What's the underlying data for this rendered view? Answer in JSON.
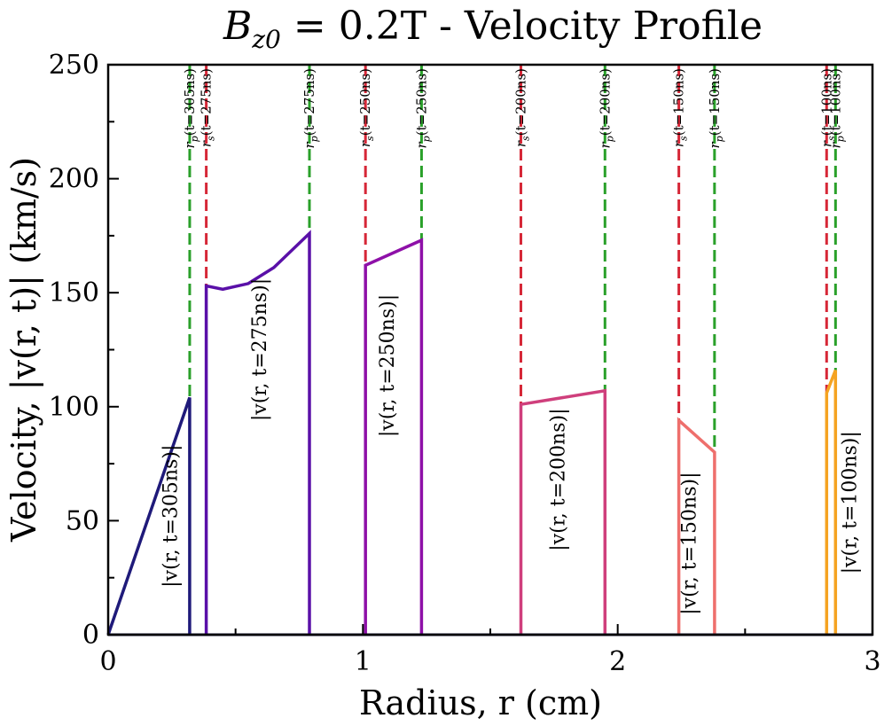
{
  "chart_data": {
    "type": "line",
    "title": "B_z0 = 0.2T - Velocity Profile",
    "title_parts": {
      "symbol": "B",
      "subscript": "z0",
      "rest": " = 0.2T - Velocity Profile"
    },
    "xlabel": "Radius, r (cm)",
    "ylabel": "Velocity, |v(r, t)| (km/s)",
    "xlim": [
      0,
      3
    ],
    "ylim": [
      0,
      250
    ],
    "xticks": [
      0,
      1,
      2,
      3
    ],
    "yticks": [
      0,
      50,
      100,
      150,
      200,
      250
    ],
    "grid": false,
    "series": [
      {
        "name": "|v(r, t=305ns)|",
        "color": "#1f1a7a",
        "points": [
          [
            0.0,
            0
          ],
          [
            0.32,
            104
          ],
          [
            0.32,
            0
          ]
        ],
        "label_pos": [
          0.27,
          52
        ]
      },
      {
        "name": "|v(r, t=275ns)|",
        "color": "#5a10a8",
        "points": [
          [
            0.385,
            0
          ],
          [
            0.385,
            153
          ],
          [
            0.45,
            151.5
          ],
          [
            0.55,
            154
          ],
          [
            0.65,
            161
          ],
          [
            0.79,
            176
          ],
          [
            0.79,
            0
          ]
        ],
        "label_pos": [
          0.62,
          125
        ]
      },
      {
        "name": "|v(r, t=250ns)|",
        "color": "#8e10a8",
        "points": [
          [
            1.01,
            0
          ],
          [
            1.01,
            162
          ],
          [
            1.23,
            173
          ],
          [
            1.23,
            0
          ]
        ],
        "label_pos": [
          1.12,
          118
        ]
      },
      {
        "name": "|v(r, t=200ns)|",
        "color": "#cf3f7c",
        "points": [
          [
            1.62,
            0
          ],
          [
            1.62,
            101
          ],
          [
            1.95,
            107
          ],
          [
            1.95,
            0
          ]
        ],
        "label_pos": [
          1.79,
          68
        ]
      },
      {
        "name": "|v(r, t=150ns)|",
        "color": "#ee6f6c",
        "points": [
          [
            2.24,
            0
          ],
          [
            2.24,
            94
          ],
          [
            2.38,
            80
          ],
          [
            2.38,
            0
          ]
        ],
        "label_pos": [
          2.305,
          40
        ]
      },
      {
        "name": "|v(r, t=100ns)|",
        "color": "#f5a321",
        "points": [
          [
            2.82,
            0
          ],
          [
            2.82,
            106
          ],
          [
            2.855,
            116
          ],
          [
            2.855,
            0
          ]
        ],
        "label_pos": [
          2.935,
          58
        ]
      }
    ],
    "vlines": [
      {
        "x": 0.32,
        "color": "#2aa02a",
        "label": "r_p(t=305ns)",
        "var": "r",
        "sub": "p",
        "arg": "(t=305ns)",
        "y_from": 104
      },
      {
        "x": 0.385,
        "color": "#d62737",
        "label": "r_s(t=275ns)",
        "var": "r",
        "sub": "s",
        "arg": "(t=275ns)",
        "y_from": 153
      },
      {
        "x": 0.79,
        "color": "#2aa02a",
        "label": "r_p(t=275ns)",
        "var": "r",
        "sub": "p",
        "arg": "(t=275ns)",
        "y_from": 176
      },
      {
        "x": 1.01,
        "color": "#d62737",
        "label": "r_s(t=250ns)",
        "var": "r",
        "sub": "s",
        "arg": "(t=250ns)",
        "y_from": 162
      },
      {
        "x": 1.23,
        "color": "#2aa02a",
        "label": "r_p(t=250ns)",
        "var": "r",
        "sub": "p",
        "arg": "(t=250ns)",
        "y_from": 173
      },
      {
        "x": 1.62,
        "color": "#d62737",
        "label": "r_s(t=200ns)",
        "var": "r",
        "sub": "s",
        "arg": "(t=200ns)",
        "y_from": 101
      },
      {
        "x": 1.95,
        "color": "#2aa02a",
        "label": "r_p(t=200ns)",
        "var": "r",
        "sub": "p",
        "arg": "(t=200ns)",
        "y_from": 107
      },
      {
        "x": 2.24,
        "color": "#d62737",
        "label": "r_s(t=150ns)",
        "var": "r",
        "sub": "s",
        "arg": "(t=150ns)",
        "y_from": 94
      },
      {
        "x": 2.38,
        "color": "#2aa02a",
        "label": "r_p(t=150ns)",
        "var": "r",
        "sub": "p",
        "arg": "(t=150ns)",
        "y_from": 80
      },
      {
        "x": 2.82,
        "color": "#d62737",
        "label": "r_s(t=100ns)",
        "var": "r",
        "sub": "s",
        "arg": "(t=100ns)",
        "y_from": 106
      },
      {
        "x": 2.855,
        "color": "#2aa02a",
        "label": "r_p(t=100ns)",
        "var": "r",
        "sub": "p",
        "arg": "(t=100ns)",
        "y_from": 116
      }
    ]
  }
}
